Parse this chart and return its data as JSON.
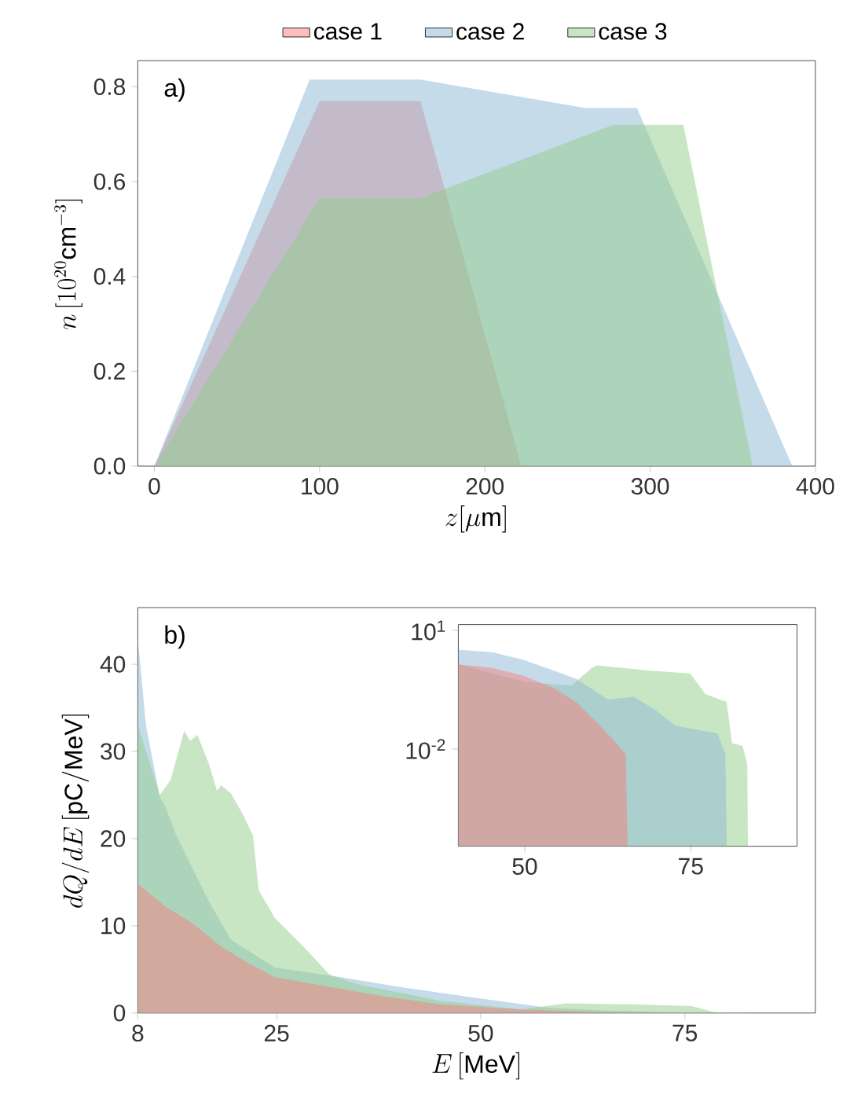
{
  "chart_data": [
    {
      "type": "area",
      "xlabel": "z[\\mu\\mathrm{m}]",
      "ylabel": "n\\,[10^{20}\\mathrm{cm}^{-3}]",
      "annotations": [
        "a)"
      ],
      "xlim": [
        -10,
        400
      ],
      "ylim": [
        0,
        0.855
      ],
      "xticks": [
        0,
        100,
        200,
        300,
        400
      ],
      "yticks": [
        {
          "value": 0,
          "label": "0.0"
        },
        0.2,
        0.4,
        0.6,
        0.8
      ],
      "legend": "top",
      "series": [
        {
          "name": "case 1",
          "color": "#f77f7f",
          "x": [
            0,
            100,
            161,
            222
          ],
          "values": [
            0,
            0.77,
            0.77,
            0
          ]
        },
        {
          "name": "case 2",
          "color": "#8cb7d6",
          "x": [
            0,
            94,
            161,
            261,
            292,
            386
          ],
          "values": [
            0,
            0.815,
            0.815,
            0.755,
            0.755,
            0
          ]
        },
        {
          "name": "case 3",
          "color": "#91cd8a",
          "x": [
            0,
            100,
            161,
            278,
            320,
            362
          ],
          "values": [
            0,
            0.565,
            0.565,
            0.72,
            0.72,
            0
          ]
        }
      ]
    },
    {
      "type": "area",
      "xlabel": "E\\,[\\mathrm{MeV}]",
      "ylabel": "dQ/dE\\,[\\mathrm{pC/MeV}]",
      "annotations": [
        "b)"
      ],
      "xlim": [
        8,
        91
      ],
      "ylim": [
        0,
        46.5
      ],
      "xticks": [
        8,
        25,
        50,
        75
      ],
      "yticks": [
        0,
        10,
        20,
        30,
        40
      ],
      "series": [
        {
          "color": "#8cb7d6",
          "x": [
            8,
            9,
            10.7,
            11.4,
            12.7,
            16.7,
            19.4,
            24.8,
            32.9,
            40,
            49.7,
            58.4,
            65,
            73,
            80
          ],
          "values": [
            43,
            33,
            24.8,
            23.6,
            20.4,
            12.8,
            8.4,
            5.2,
            4.1,
            3,
            1.7,
            0.6,
            0.3,
            0.1,
            0
          ]
        },
        {
          "color": "#91cd8a",
          "x": [
            8,
            10.7,
            12,
            13.7,
            14.4,
            15.3,
            16.7,
            17.7,
            18.2,
            19.4,
            20.8,
            22.1,
            22.8,
            24.8,
            28.2,
            31.5,
            34.9,
            45,
            55,
            60.4,
            68.5,
            75.9,
            78.6,
            85
          ],
          "values": [
            33,
            25,
            26.7,
            32.4,
            31.2,
            31.9,
            28.6,
            25.5,
            26.1,
            25.2,
            22.9,
            20.4,
            14.1,
            10.9,
            7.7,
            4.4,
            3.3,
            1.4,
            0.4,
            1.1,
            1,
            0.8,
            0.1,
            0
          ]
        },
        {
          "color": "#f77f7f",
          "x": [
            8,
            11.4,
            14.7,
            18.1,
            21.4,
            24.8,
            31.5,
            38.2,
            45,
            55,
            65.1,
            71.8
          ],
          "values": [
            14.8,
            12.2,
            10.3,
            7.7,
            5.8,
            4.1,
            3,
            1.9,
            1,
            0.4,
            0.1,
            0
          ]
        }
      ]
    },
    {
      "type": "area",
      "log": true,
      "xlim": [
        40,
        91
      ],
      "ylim": [
        3.5e-05,
        14
      ],
      "xticks": [
        50,
        75
      ],
      "yticks": [
        {
          "value": 10,
          "label": "10$^{1}$"
        },
        {
          "value": 0.01,
          "label": "10$^{-2}$"
        }
      ],
      "series": [
        {
          "color": "#91cd8a",
          "x": [
            40,
            50,
            57,
            60.1,
            60.9,
            68.8,
            74.9,
            77.2,
            80.4,
            81.2,
            82.8,
            83.5,
            83.6
          ],
          "values": [
            1.4,
            0.5,
            0.4,
            1.12,
            1.3,
            0.96,
            0.82,
            0.245,
            0.155,
            0.014,
            0.012,
            0.0042,
            3.5e-05
          ]
        },
        {
          "color": "#8cb7d6",
          "x": [
            40,
            45.1,
            49.8,
            55.4,
            57.7,
            60.1,
            62.5,
            66.4,
            69.6,
            72.7,
            76.7,
            79,
            80.2,
            80.4
          ],
          "values": [
            3.2,
            2.8,
            1.8,
            0.83,
            0.6,
            0.33,
            0.18,
            0.21,
            0.1,
            0.039,
            0.029,
            0.025,
            0.0074,
            3.5e-05
          ]
        },
        {
          "color": "#f77f7f",
          "x": [
            40,
            45.1,
            49.8,
            54.6,
            57.7,
            60.9,
            63.2,
            65.2,
            65.5
          ],
          "values": [
            1.38,
            1.12,
            0.71,
            0.33,
            0.155,
            0.046,
            0.018,
            0.0074,
            3.5e-05
          ]
        }
      ]
    }
  ]
}
